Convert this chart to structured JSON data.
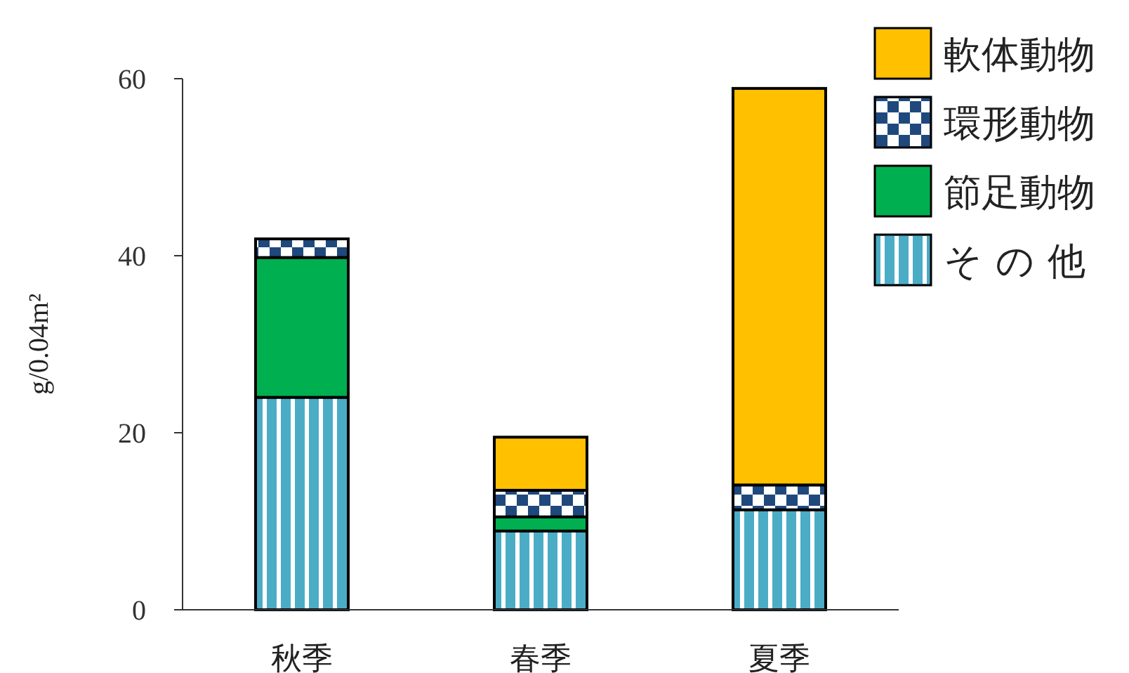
{
  "chart_data": {
    "type": "bar",
    "stacked": true,
    "ylabel": "g/0.04m²",
    "categories": [
      "秋季",
      "春季",
      "夏季"
    ],
    "series": [
      {
        "name": "その他",
        "color": "#4bacc6",
        "values": [
          24.0,
          8.9,
          11.3
        ]
      },
      {
        "name": "節足動物",
        "color": "#00b050",
        "values": [
          15.8,
          1.6,
          0
        ]
      },
      {
        "name": "環形動物",
        "color": "#1f497d",
        "values": [
          2.1,
          3.0,
          2.8
        ]
      },
      {
        "name": "軟体動物",
        "color": "#ffc000",
        "values": [
          0,
          6.0,
          44.8
        ]
      }
    ],
    "ylim": [
      0,
      60
    ],
    "yticks": [
      0,
      20,
      40,
      60
    ],
    "grid": false,
    "legend": "top right"
  }
}
